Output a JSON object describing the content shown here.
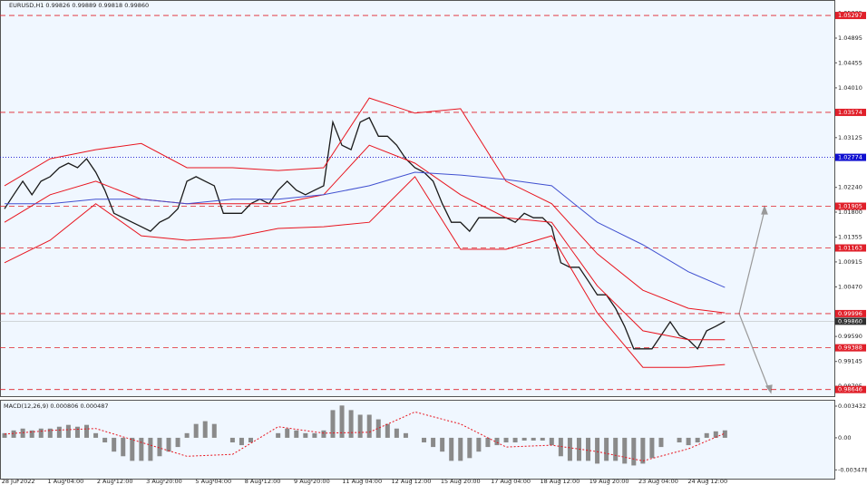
{
  "chart_data": [
    {
      "type": "line",
      "title": "EURUSD,H1  0.99826 0.99889 0.99818 0.99860",
      "xlim": [
        -0.5,
        91
      ],
      "xticks": [
        {
          "value": 1.5,
          "label": "28 Jul 2022"
        },
        {
          "value": 6.7,
          "label": "1 Aug 04:00"
        },
        {
          "value": 12.1,
          "label": "2 Aug 12:00"
        },
        {
          "value": 17.5,
          "label": "3 Aug 20:00"
        },
        {
          "value": 22.9,
          "label": "5 Aug 04:00"
        },
        {
          "value": 28.3,
          "label": "8 Aug 12:00"
        },
        {
          "value": 33.7,
          "label": "9 Aug 20:00"
        },
        {
          "value": 39.2,
          "label": "11 Aug 04:00"
        },
        {
          "value": 44.6,
          "label": "12 Aug 12:00"
        },
        {
          "value": 50,
          "label": "15 Aug 20:00"
        },
        {
          "value": 55.5,
          "label": "17 Aug 04:00"
        },
        {
          "value": 60.9,
          "label": "18 Aug 12:00"
        },
        {
          "value": 66.3,
          "label": "19 Aug 20:00"
        },
        {
          "value": 71.7,
          "label": "23 Aug 04:00"
        },
        {
          "value": 77.1,
          "label": "24 Aug 12:00"
        }
      ],
      "ylim": [
        0.98528,
        1.05572
      ],
      "yticks": [
        0.98705,
        0.99145,
        {
          "value": 0.9959,
          "label": "0.99590"
        },
        {
          "value": 1.0047,
          "label": "1.00470"
        },
        1.00915,
        1.01355,
        {
          "value": 1.018,
          "label": "1.01800"
        },
        {
          "value": 1.0224,
          "label": "1.02240"
        },
        1.03125,
        {
          "value": 1.0401,
          "label": "1.04010"
        },
        1.04455,
        1.04895,
        1.05335
      ],
      "levels": [
        {
          "value": 1.05297,
          "color": "#e0202a",
          "style": "dashed"
        },
        {
          "value": 1.03574,
          "color": "#e0202a",
          "style": "dashed"
        },
        {
          "value": 1.02774,
          "color": "#1010d0",
          "style": "dotted"
        },
        {
          "value": 1.01905,
          "color": "#e0202a",
          "style": "dashed"
        },
        {
          "value": 1.01163,
          "color": "#e0202a",
          "style": "dashed"
        },
        {
          "value": 0.99996,
          "color": "#e0202a",
          "style": "dashed"
        },
        {
          "value": 0.9986,
          "label": "0.99860",
          "color": "#303030",
          "style": "solid"
        },
        {
          "value": 0.99388,
          "color": "#e0202a",
          "style": "dashed"
        },
        {
          "value": 0.98646,
          "color": "#e0202a",
          "style": "dashed"
        }
      ],
      "series": [
        {
          "color": "#1a1a1a",
          "values": [
            1.0186,
            1.0211,
            1.0235,
            1.0211,
            1.0235,
            1.0243,
            1.0259,
            1.0267,
            1.0259,
            1.0275,
            1.0251,
            1.0219,
            1.0178,
            1.017,
            1.0162,
            1.0154,
            1.0146,
            1.0162,
            1.017,
            1.0186,
            1.0235,
            1.0243,
            1.0235,
            1.0227,
            1.0178,
            1.0178,
            1.0178,
            1.0195,
            1.0203,
            1.0195,
            1.0219,
            1.0235,
            1.0219,
            1.0211,
            1.0219,
            1.0227,
            1.034,
            1.0299,
            1.0291,
            1.034,
            1.0348,
            1.0315,
            1.0315,
            1.0299,
            1.0275,
            1.0259,
            1.0251,
            1.0235,
            1.0195,
            1.0162,
            1.0162,
            1.0146,
            1.017,
            1.017,
            1.017,
            1.017,
            1.0162,
            1.0178,
            1.017,
            1.017,
            1.0154,
            1.009,
            1.0082,
            1.0082,
            1.0058,
            1.0033,
            1.0033,
            1.0009,
            0.9977,
            0.9937,
            0.9937,
            0.9937,
            0.9961,
            0.9985,
            0.9961,
            0.9953,
            0.9937,
            0.9969,
            0.9977,
            0.9986
          ]
        },
        {
          "color": "#e8141e",
          "x": [
            0,
            5,
            10,
            15,
            20,
            25,
            30,
            35,
            40,
            45,
            50,
            55,
            60,
            65,
            70,
            75,
            79
          ],
          "values": [
            1.0227,
            1.0275,
            1.0291,
            1.0302,
            1.0259,
            1.0259,
            1.0254,
            1.0259,
            1.0383,
            1.0356,
            1.0364,
            1.0235,
            1.0195,
            1.0106,
            1.0041,
            1.0009,
            1.0001
          ]
        },
        {
          "color": "#e8141e",
          "x": [
            0,
            5,
            10,
            15,
            20,
            25,
            30,
            35,
            40,
            45,
            50,
            55,
            60,
            65,
            70,
            75,
            79
          ],
          "values": [
            1.0162,
            1.0211,
            1.0235,
            1.0203,
            1.0195,
            1.0195,
            1.0195,
            1.0211,
            1.0299,
            1.0267,
            1.0211,
            1.017,
            1.0162,
            1.0049,
            0.9969,
            0.9953,
            0.9953
          ]
        },
        {
          "color": "#e8141e",
          "x": [
            0,
            5,
            10,
            15,
            20,
            25,
            30,
            35,
            40,
            45,
            50,
            55,
            60,
            65,
            70,
            75,
            79
          ],
          "values": [
            1.009,
            1.013,
            1.0195,
            1.0138,
            1.013,
            1.0135,
            1.0151,
            1.0154,
            1.0162,
            1.0243,
            1.0114,
            1.0114,
            1.0138,
            1.0001,
            0.9904,
            0.9904,
            0.9909
          ]
        },
        {
          "color": "#4050d0",
          "x": [
            0,
            5,
            10,
            15,
            20,
            25,
            30,
            35,
            40,
            45,
            50,
            55,
            60,
            65,
            70,
            75,
            79
          ],
          "values": [
            1.0195,
            1.0195,
            1.0203,
            1.0203,
            1.0195,
            1.0203,
            1.0203,
            1.0211,
            1.0227,
            1.0251,
            1.0246,
            1.0238,
            1.0227,
            1.0162,
            1.0122,
            1.0074,
            1.0046
          ]
        }
      ]
    },
    {
      "type": "bar",
      "title": "MACD(12,26,9) 0.000806 0.000487",
      "xlim": [
        -0.5,
        91
      ],
      "ylim": [
        -0.00443,
        0.00412
      ],
      "yticks": [
        -0.003478,
        {
          "value": 0,
          "label": "0.00"
        },
        0.003432
      ],
      "color": "#8a8a8a",
      "values": [
        0.0005,
        0.0008,
        0.001,
        0.0008,
        0.001,
        0.001,
        0.0012,
        0.0014,
        0.0012,
        0.0014,
        0.0005,
        -0.0005,
        -0.0015,
        -0.002,
        -0.0025,
        -0.0025,
        -0.0025,
        -0.002,
        -0.0015,
        -0.001,
        0.0005,
        0.0015,
        0.0018,
        0.0015,
        0,
        -0.0005,
        -0.0008,
        -0.0005,
        0,
        0,
        0.0005,
        0.001,
        0.0008,
        0.0005,
        0.0005,
        0.0008,
        0.003,
        0.0035,
        0.003,
        0.0025,
        0.0025,
        0.002,
        0.0015,
        0.001,
        0.0005,
        0,
        -0.0005,
        -0.001,
        -0.0015,
        -0.0025,
        -0.0025,
        -0.0022,
        -0.0015,
        -0.001,
        -0.0008,
        -0.0005,
        -0.0005,
        -0.0003,
        -0.0003,
        -0.0003,
        -0.0008,
        -0.002,
        -0.0025,
        -0.0025,
        -0.0025,
        -0.0028,
        -0.0025,
        -0.0025,
        -0.0028,
        -0.003,
        -0.0028,
        -0.0022,
        -0.001,
        0,
        -0.0005,
        -0.0008,
        -0.0005,
        0.0005,
        0.0007,
        0.000806
      ],
      "series": [
        {
          "color": "#e8141e",
          "dashed": true,
          "x": [
            0,
            5,
            10,
            15,
            20,
            25,
            30,
            35,
            40,
            45,
            50,
            55,
            60,
            65,
            70,
            75,
            79
          ],
          "values": [
            0.0004,
            0.0008,
            0.001,
            -0.0005,
            -0.002,
            -0.0018,
            0.0012,
            0.0005,
            0.0006,
            0.0028,
            0.0015,
            -0.001,
            -0.0008,
            -0.0015,
            -0.0025,
            -0.0012,
            0.000487
          ]
        }
      ]
    }
  ]
}
